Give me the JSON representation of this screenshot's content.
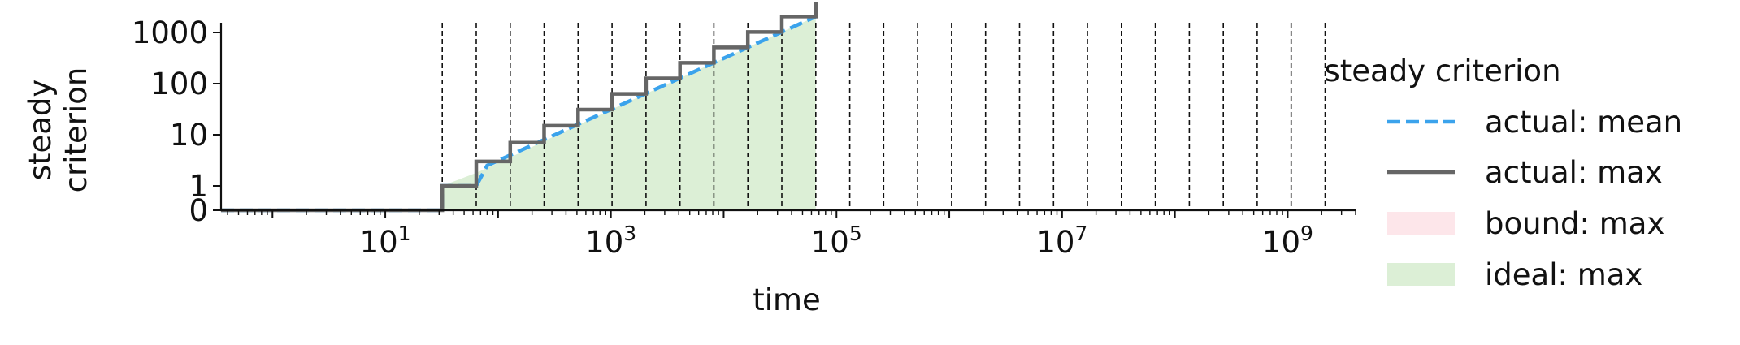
{
  "chart_data": {
    "type": "line",
    "xlabel": "time",
    "ylabel_lines": [
      "steady",
      "criterion"
    ],
    "x_scale": "log",
    "x_range": [
      0.35,
      4000000000
    ],
    "y_scale": "symlog",
    "y_range": [
      0,
      4000
    ],
    "grid": false,
    "x_ticks": [
      {
        "value": 10,
        "base": "10",
        "exp": "1"
      },
      {
        "value": 1000,
        "base": "10",
        "exp": "3"
      },
      {
        "value": 100000,
        "base": "10",
        "exp": "5"
      },
      {
        "value": 10000000,
        "base": "10",
        "exp": "7"
      },
      {
        "value": 1000000000,
        "base": "10",
        "exp": "9"
      }
    ],
    "y_ticks": [
      {
        "value": 0,
        "label": "0"
      },
      {
        "value": 1,
        "label": "1"
      },
      {
        "value": 10,
        "label": "10"
      },
      {
        "value": 100,
        "label": "100"
      },
      {
        "value": 1000,
        "label": "1000"
      }
    ],
    "vlines": [
      32,
      64,
      128,
      256,
      512,
      1024,
      2048,
      4096,
      8192,
      16384,
      32768,
      65536,
      131072,
      262144,
      524288,
      1048576,
      2097152,
      4194304,
      8388608,
      16777216,
      33554432,
      67108864,
      134217728,
      268435456,
      536870912,
      1073741824,
      2147483648
    ],
    "legend": {
      "title": "steady criterion",
      "placement": "right",
      "entries": [
        {
          "label": "actual: mean",
          "style": "dashed",
          "color": "#3ba3ec"
        },
        {
          "label": "actual: max",
          "style": "solid",
          "color": "#666666"
        },
        {
          "label": "bound: max",
          "style": "patch",
          "color": "#fde6ea"
        },
        {
          "label": "ideal: max",
          "style": "patch",
          "color": "#dcefd6"
        }
      ]
    },
    "series": [
      {
        "name": "actual: max",
        "color": "#666666",
        "type": "step",
        "x": [
          0.35,
          32,
          32,
          64,
          64,
          128,
          128,
          256,
          256,
          512,
          512,
          1024,
          1024,
          2048,
          2048,
          4096,
          4096,
          8192,
          8192,
          16384,
          16384,
          32768,
          32768,
          65536,
          65536
        ],
        "y": [
          0,
          0,
          1,
          1,
          3,
          3,
          7,
          7,
          15,
          15,
          31,
          31,
          63,
          63,
          127,
          127,
          255,
          255,
          511,
          511,
          1023,
          1023,
          2047,
          2047,
          4000
        ]
      },
      {
        "name": "actual: mean",
        "color": "#3ba3ec",
        "type": "line",
        "x": [
          0.35,
          32,
          32,
          64,
          80,
          128,
          256,
          512,
          1024,
          2048,
          4096,
          8192,
          16384,
          32768,
          65536
        ],
        "y": [
          0,
          0,
          1,
          1,
          2.5,
          4,
          8,
          16,
          32,
          64,
          128,
          256,
          512,
          1024,
          2048
        ]
      },
      {
        "name": "ideal: max",
        "color": "#dcefd6",
        "type": "area",
        "x": [
          32,
          64,
          128,
          256,
          512,
          1024,
          2048,
          4096,
          8192,
          16384,
          32768,
          65536
        ],
        "y": [
          1,
          1.8,
          3.6,
          7.5,
          15.5,
          31.5,
          63.5,
          127.5,
          255.5,
          511.5,
          1023.5,
          2047.5
        ]
      }
    ]
  }
}
